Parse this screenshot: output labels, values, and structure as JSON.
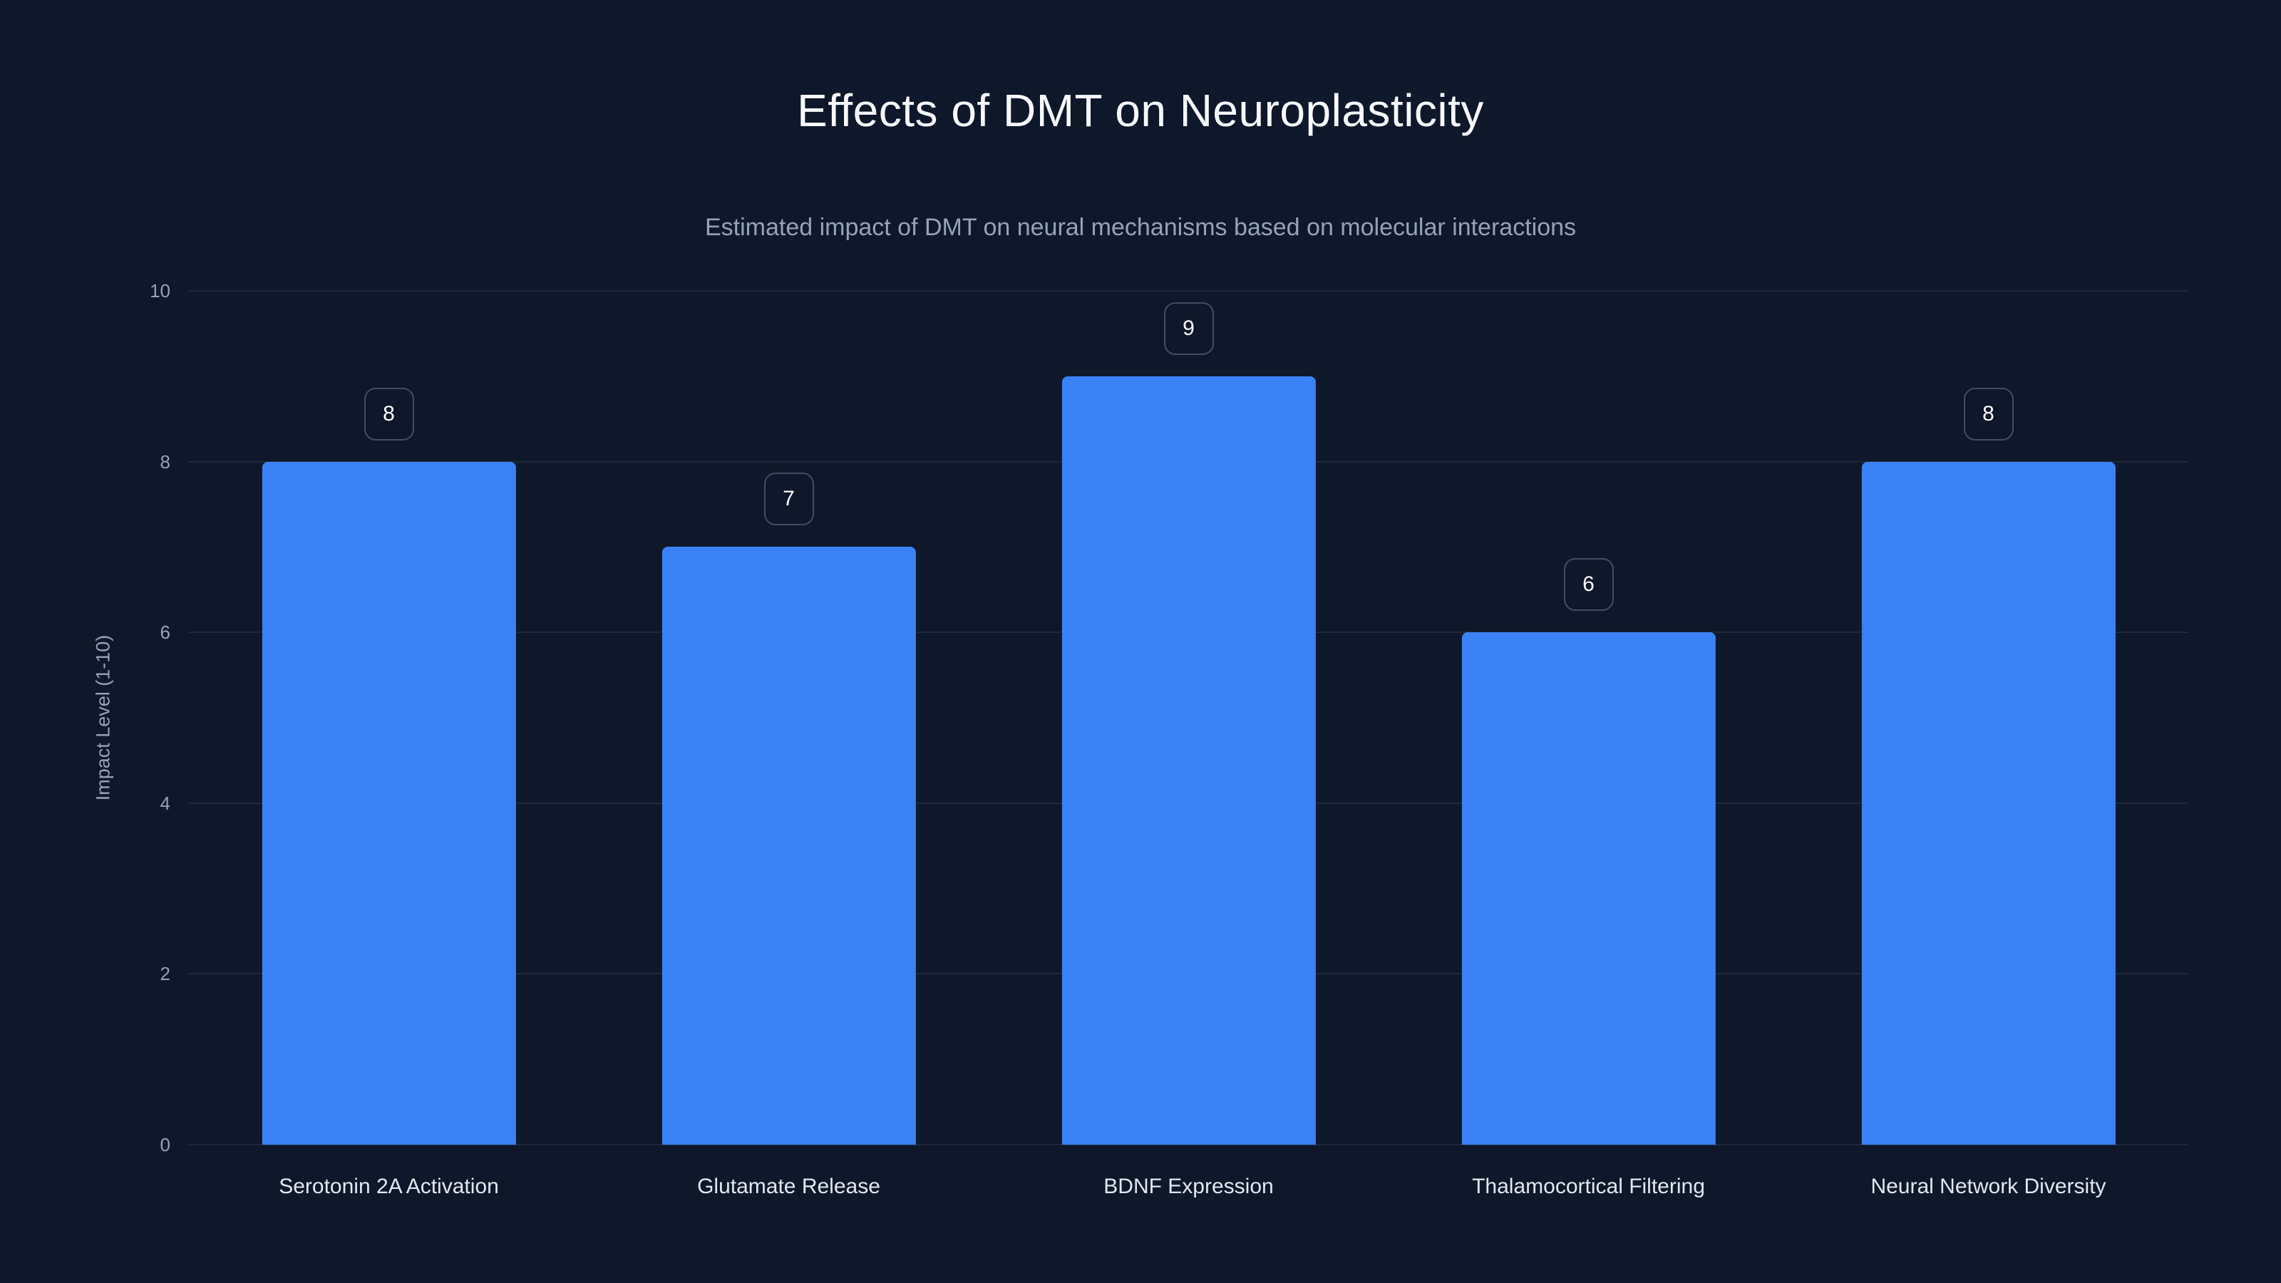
{
  "chart_data": {
    "type": "bar",
    "title": "Effects of DMT on Neuroplasticity",
    "subtitle": "Estimated impact of DMT on neural mechanisms based on molecular interactions",
    "categories": [
      "Serotonin 2A Activation",
      "Glutamate Release",
      "BDNF Expression",
      "Thalamocortical Filtering",
      "Neural Network Diversity"
    ],
    "values": [
      8,
      7,
      9,
      6,
      8
    ],
    "xlabel": "",
    "ylabel": "Impact Level (1-10)",
    "ylim": [
      0,
      10
    ],
    "yticks": [
      0,
      2,
      4,
      6,
      8,
      10
    ],
    "grid": true,
    "legend_position": "none",
    "colors": {
      "background": "#0f172a",
      "bar": "#3b82f6",
      "gridline": "rgba(148,163,184,0.12)",
      "title_text": "#f8fafc",
      "subtitle_text": "#94a3b8",
      "axis_text": "#94a3b8",
      "category_text": "#e2e8f0",
      "badge_background": "#0f172a",
      "badge_border": "#3e4e66",
      "badge_text": "#ffffff"
    }
  }
}
